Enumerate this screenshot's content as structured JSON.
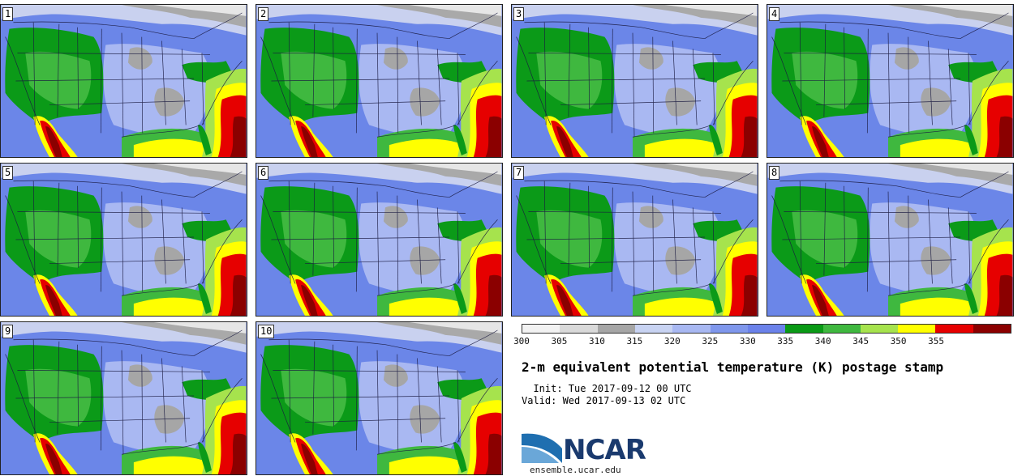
{
  "panels": [
    {
      "label": "1"
    },
    {
      "label": "2"
    },
    {
      "label": "3"
    },
    {
      "label": "4"
    },
    {
      "label": "5"
    },
    {
      "label": "6"
    },
    {
      "label": "7"
    },
    {
      "label": "8"
    },
    {
      "label": "9"
    },
    {
      "label": "10"
    }
  ],
  "colorbar": {
    "ticks": [
      "300",
      "305",
      "310",
      "315",
      "320",
      "325",
      "330",
      "335",
      "340",
      "345",
      "350",
      "355"
    ],
    "colors": [
      "#f2f2f2",
      "#d9d9d9",
      "#a6a6a6",
      "#c8d3f2",
      "#a8b8f2",
      "#7f97ec",
      "#6b82ea",
      "#0a9a16",
      "#3fb83f",
      "#a6e34d",
      "#ffff00",
      "#e60000",
      "#8b0000"
    ]
  },
  "title": "2-m equivalent potential temperature (K) postage stamp",
  "init_line": "  Init: Tue 2017-09-12 00 UTC",
  "valid_line": "Valid: Wed 2017-09-13 02 UTC",
  "logo": {
    "text": "NCAR",
    "url_text": "ensemble.ucar.edu"
  }
}
